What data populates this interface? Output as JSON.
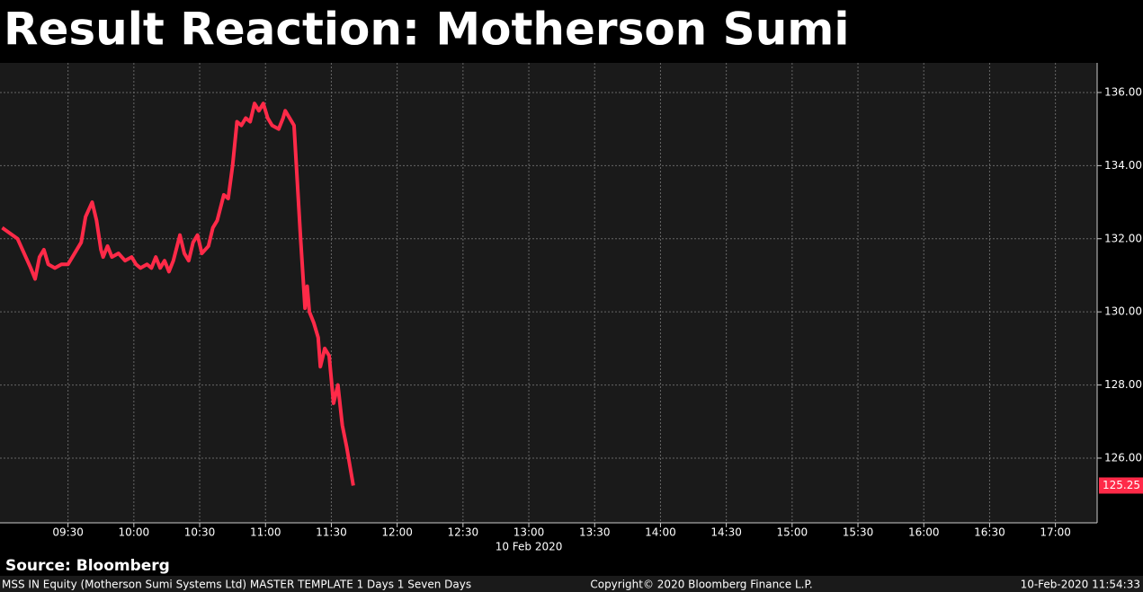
{
  "chart_data": {
    "type": "line",
    "title": "Result Reaction: Motherson Sumi",
    "source": "Source: Bloomberg",
    "x_date_label": "10 Feb 2020",
    "footer_left": "MSS IN Equity (Motherson Sumi Systems Ltd) MASTER TEMPLATE 1 Days 1 Seven Days",
    "footer_center": "Copyright© 2020 Bloomberg Finance L.P.",
    "footer_right": "10-Feb-2020 11:54:33",
    "x": [
      "09:00",
      "09:07",
      "09:13",
      "09:15",
      "09:17",
      "09:19",
      "09:21",
      "09:24",
      "09:27",
      "09:30",
      "09:33",
      "09:36",
      "09:38",
      "09:41",
      "09:43",
      "09:45",
      "09:46",
      "09:48",
      "09:50",
      "09:53",
      "09:56",
      "09:59",
      "10:01",
      "10:03",
      "10:06",
      "10:08",
      "10:10",
      "10:12",
      "10:14",
      "10:16",
      "10:18",
      "10:21",
      "10:23",
      "10:25",
      "10:27",
      "10:29",
      "10:31",
      "10:34",
      "10:36",
      "10:38",
      "10:41",
      "10:43",
      "10:45",
      "10:47",
      "10:49",
      "10:51",
      "10:53",
      "10:55",
      "10:57",
      "10:59",
      "11:01",
      "11:03",
      "11:06",
      "11:08",
      "11:09",
      "11:11",
      "11:13",
      "11:16",
      "11:18",
      "11:19",
      "11:20",
      "11:22",
      "11:24",
      "11:25",
      "11:27",
      "11:29",
      "11:31",
      "11:33",
      "11:35",
      "11:37",
      "11:40"
    ],
    "series": [
      {
        "name": "MSS IN Equity",
        "color": "#ff2a48",
        "values": [
          132.3,
          132.0,
          131.2,
          130.9,
          131.5,
          131.7,
          131.3,
          131.2,
          131.3,
          131.3,
          131.6,
          131.9,
          132.6,
          133.0,
          132.5,
          131.7,
          131.5,
          131.8,
          131.5,
          131.6,
          131.4,
          131.5,
          131.3,
          131.2,
          131.3,
          131.2,
          131.5,
          131.2,
          131.4,
          131.1,
          131.4,
          132.1,
          131.6,
          131.4,
          131.9,
          132.1,
          131.6,
          131.8,
          132.3,
          132.5,
          133.2,
          133.1,
          134.0,
          135.2,
          135.1,
          135.3,
          135.2,
          135.7,
          135.5,
          135.7,
          135.3,
          135.1,
          135.0,
          135.3,
          135.5,
          135.3,
          135.1,
          132.0,
          130.1,
          130.7,
          130.0,
          129.7,
          129.3,
          128.5,
          129.0,
          128.8,
          127.5,
          128.0,
          126.9,
          126.3,
          125.25
        ]
      }
    ],
    "xlim": [
      "08:59",
      "17:19"
    ],
    "xticks": [
      "09:30",
      "10:00",
      "10:30",
      "11:00",
      "11:30",
      "12:00",
      "12:30",
      "13:00",
      "13:30",
      "14:00",
      "14:30",
      "15:00",
      "15:30",
      "16:00",
      "16:30",
      "17:00"
    ],
    "ylim": [
      124.23,
      136.81
    ],
    "yticks": [
      {
        "value": 126,
        "label": "126.00"
      },
      {
        "value": 128,
        "label": "128.00"
      },
      {
        "value": 130,
        "label": "130.00"
      },
      {
        "value": 132,
        "label": "132.00"
      },
      {
        "value": 134,
        "label": "134.00"
      },
      {
        "value": 136,
        "label": "136.00"
      }
    ],
    "grid": true
  }
}
